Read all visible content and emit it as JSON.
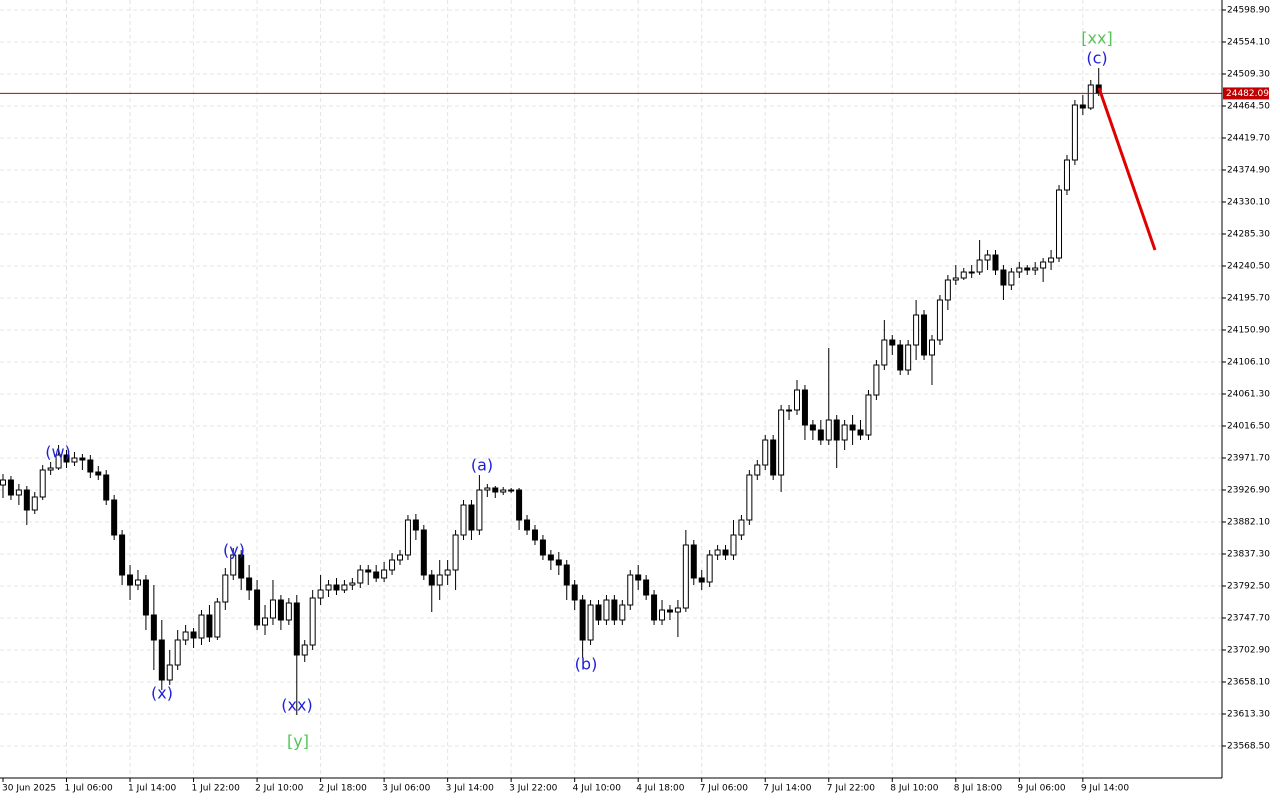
{
  "chart_data": {
    "type": "candlestick",
    "categories": [
      "30 Jun 2025",
      null,
      null,
      null,
      null,
      null,
      null,
      null,
      "1 Jul 06:00",
      null,
      null,
      null,
      null,
      null,
      null,
      null,
      "1 Jul 14:00",
      null,
      null,
      null,
      null,
      null,
      null,
      null,
      "1 Jul 22:00",
      null,
      null,
      null,
      null,
      null,
      null,
      null,
      "2 Jul 10:00",
      null,
      null,
      null,
      null,
      null,
      null,
      null,
      "2 Jul 18:00",
      null,
      null,
      null,
      null,
      null,
      null,
      null,
      "3 Jul 06:00",
      null,
      null,
      null,
      null,
      null,
      null,
      null,
      "3 Jul 14:00",
      null,
      null,
      null,
      null,
      null,
      null,
      null,
      "3 Jul 22:00",
      null,
      null,
      null,
      null,
      null,
      null,
      null,
      "4 Jul 10:00",
      null,
      null,
      null,
      null,
      null,
      null,
      null,
      "4 Jul 18:00",
      null,
      null,
      null,
      null,
      null,
      null,
      null,
      "7 Jul 06:00",
      null,
      null,
      null,
      null,
      null,
      null,
      null,
      "7 Jul 14:00",
      null,
      null,
      null,
      null,
      null,
      null,
      null,
      "7 Jul 22:00",
      null,
      null,
      null,
      null,
      null,
      null,
      null,
      "8 Jul 10:00",
      null,
      null,
      null,
      null,
      null,
      null,
      null,
      "8 Jul 18:00",
      null,
      null,
      null,
      null,
      null,
      null,
      null,
      "9 Jul 06:00",
      null,
      null,
      null,
      null,
      null,
      null,
      null,
      "9 Jul 14:00",
      null,
      null
    ],
    "open": [
      23933.9,
      23940.9,
      23919.9,
      23926.9,
      23898.9,
      23917.1,
      23954.9,
      23957.7,
      23975.9,
      23966.1,
      23971.7,
      23968.9,
      23952.1,
      23947.9,
      23912.9,
      23863.9,
      23807.9,
      23793.9,
      23800.9,
      23751.9,
      23716.9,
      23660.9,
      23681.9,
      23716.9,
      23728.1,
      23719.7,
      23751.9,
      23721.1,
      23770.1,
      23807.9,
      23835.9,
      23803.7,
      23786.9,
      23737.9,
      23747.7,
      23772.9,
      23744.9,
      23768.7,
      23695.9,
      23709.9,
      23775.7,
      23786.9,
      23793.9,
      23786.9,
      23793.9,
      23796.7,
      23814.9,
      23812.1,
      23803.7,
      23814.9,
      23828.9,
      23835.9,
      23884.9,
      23870.9,
      23807.9,
      23793.9,
      23807.9,
      23814.9,
      23863.9,
      23905.9,
      23870.9,
      23926.9,
      23929.7,
      23924.1,
      23926.9,
      23926.9,
      23884.9,
      23870.9,
      23856.9,
      23835.9,
      23828.9,
      23821.9,
      23793.9,
      23772.9,
      23716.9,
      23765.9,
      23744.9,
      23772.9,
      23744.9,
      23765.9,
      23807.9,
      23800.9,
      23779.9,
      23744.9,
      23758.9,
      23756.1,
      23761.7,
      23849.9,
      23803.7,
      23798.1,
      23835.9,
      23842.9,
      23835.9,
      23863.9,
      23884.9,
      23947.9,
      23961.9,
      23996.9,
      23947.9,
      24038.9,
      24038.9,
      24066.9,
      24017.9,
      24010.9,
      23996.9,
      24024.9,
      23996.9,
      24017.9,
      24010.9,
      24003.9,
      24059.9,
      24101.9,
      24136.9,
      24129.9,
      24094.9,
      24129.9,
      24171.9,
      24115.9,
      24136.9,
      24192.9,
      24220.9,
      24223.7,
      24232.1,
      24232.1,
      24248.9,
      24255.9,
      24234.9,
      24213.9,
      24232.1,
      24237.7,
      24234.9,
      24237.7,
      24246.1,
      24251.7,
      24346.9,
      24388.9,
      24465.9,
      24461.7,
      24493.9
    ],
    "high": [
      23949.3,
      23946.5,
      23935.3,
      23932.5,
      23924.1,
      23961.9,
      23966.1,
      23989.9,
      23982.9,
      23980.1,
      23977.3,
      23975.9,
      23960.5,
      23954.9,
      23919.9,
      23870.9,
      23821.9,
      23814.9,
      23807.9,
      23793.9,
      23744.9,
      23702.9,
      23730.9,
      23737.9,
      23733.7,
      23758.9,
      23765.9,
      23775.7,
      23817.7,
      23845.7,
      23842.9,
      23821.9,
      23800.9,
      23765.9,
      23800.9,
      23779.9,
      23775.7,
      23779.9,
      23716.9,
      23786.9,
      23807.9,
      23800.9,
      23803.7,
      23800.9,
      23803.7,
      23821.9,
      23821.9,
      23821.9,
      23826.1,
      23838.7,
      23842.9,
      23891.9,
      23893.3,
      23877.9,
      23814.9,
      23828.9,
      23828.9,
      23870.9,
      23912.9,
      23912.9,
      23947.9,
      23935.3,
      23932.5,
      23931.1,
      23929.7,
      23929.7,
      23891.9,
      23877.9,
      23863.9,
      23842.9,
      23840.1,
      23828.9,
      23800.9,
      23779.9,
      23772.9,
      23772.9,
      23779.9,
      23779.9,
      23772.9,
      23814.9,
      23821.9,
      23807.9,
      23786.9,
      23772.9,
      23765.9,
      23772.9,
      23870.9,
      23856.9,
      23814.9,
      23842.9,
      23849.9,
      23849.9,
      23884.9,
      23891.9,
      23954.9,
      23968.9,
      24003.9,
      24003.9,
      24045.9,
      24045.9,
      24080.9,
      24073.9,
      24024.9,
      24024.9,
      24125.7,
      24031.9,
      24024.9,
      24031.9,
      24024.9,
      24066.9,
      24108.9,
      24164.9,
      24143.9,
      24136.9,
      24136.9,
      24192.9,
      24178.9,
      24143.9,
      24199.9,
      24227.9,
      24241.9,
      24237.7,
      24241.9,
      24276.9,
      24262.9,
      24262.9,
      24241.9,
      24237.7,
      24246.1,
      24241.9,
      24246.1,
      24251.7,
      24262.9,
      24353.9,
      24395.9,
      24472.9,
      24479.9,
      24500.9,
      24517.7
    ],
    "low": [
      23915.7,
      23912.9,
      23905.9,
      23877.9,
      23893.3,
      23912.9,
      23947.9,
      23954.9,
      23957.7,
      23960.5,
      23954.9,
      23943.7,
      23940.9,
      23905.9,
      23856.9,
      23793.9,
      23772.9,
      23786.9,
      23730.9,
      23674.9,
      23646.9,
      23653.9,
      23674.9,
      23709.9,
      23705.7,
      23709.9,
      23714.1,
      23716.9,
      23758.9,
      23800.9,
      23786.9,
      23772.9,
      23730.9,
      23723.9,
      23737.9,
      23730.9,
      23737.9,
      23611.9,
      23686.1,
      23702.9,
      23765.9,
      23777.1,
      23779.9,
      23782.7,
      23786.9,
      23789.7,
      23793.9,
      23798.1,
      23798.1,
      23807.9,
      23821.9,
      23828.9,
      23856.9,
      23800.9,
      23756.1,
      23772.9,
      23793.9,
      23786.9,
      23856.9,
      23856.9,
      23863.9,
      23917.1,
      23915.7,
      23919.9,
      23922.7,
      23870.9,
      23863.9,
      23849.9,
      23828.9,
      23814.9,
      23807.9,
      23772.9,
      23758.9,
      23691.7,
      23709.9,
      23737.9,
      23737.9,
      23737.9,
      23737.9,
      23758.9,
      23786.9,
      23772.9,
      23737.9,
      23737.9,
      23744.9,
      23721.1,
      23756.1,
      23793.9,
      23786.9,
      23791.1,
      23828.9,
      23828.9,
      23828.9,
      23856.9,
      23877.9,
      23940.9,
      23954.9,
      23940.9,
      23924.1,
      24024.9,
      24031.9,
      23996.9,
      23996.9,
      23989.9,
      23989.9,
      23957.7,
      23982.9,
      23989.9,
      23996.9,
      23996.9,
      24052.9,
      24094.9,
      24115.9,
      24087.9,
      24087.9,
      24108.9,
      24108.9,
      24073.9,
      24129.9,
      24178.9,
      24213.9,
      24220.9,
      24223.7,
      24227.9,
      24234.9,
      24227.9,
      24192.9,
      24206.9,
      24223.7,
      24227.9,
      24227.9,
      24218.1,
      24234.9,
      24246.1,
      24339.9,
      24381.9,
      24451.9,
      24458.9,
      24478.5
    ],
    "close": [
      23940.9,
      23919.9,
      23926.9,
      23898.9,
      23917.1,
      23954.9,
      23957.7,
      23975.9,
      23966.1,
      23971.7,
      23968.9,
      23952.1,
      23947.9,
      23912.9,
      23863.9,
      23807.9,
      23793.9,
      23800.9,
      23751.9,
      23716.9,
      23660.9,
      23681.9,
      23716.9,
      23728.1,
      23719.7,
      23751.9,
      23721.1,
      23770.1,
      23807.9,
      23835.9,
      23803.7,
      23786.9,
      23737.9,
      23747.7,
      23772.9,
      23744.9,
      23768.7,
      23695.9,
      23709.9,
      23775.7,
      23786.9,
      23793.9,
      23786.9,
      23793.9,
      23796.7,
      23814.9,
      23812.1,
      23803.7,
      23814.9,
      23828.9,
      23835.9,
      23884.9,
      23870.9,
      23807.9,
      23793.9,
      23807.9,
      23814.9,
      23863.9,
      23905.9,
      23870.9,
      23926.9,
      23929.7,
      23924.1,
      23926.9,
      23926.9,
      23884.9,
      23870.9,
      23856.9,
      23835.9,
      23828.9,
      23821.9,
      23793.9,
      23772.9,
      23716.9,
      23765.9,
      23744.9,
      23772.9,
      23744.9,
      23765.9,
      23807.9,
      23800.9,
      23779.9,
      23744.9,
      23758.9,
      23756.1,
      23761.7,
      23849.9,
      23803.7,
      23798.1,
      23835.9,
      23842.9,
      23835.9,
      23863.9,
      23884.9,
      23947.9,
      23961.9,
      23996.9,
      23947.9,
      24038.9,
      24038.9,
      24066.9,
      24017.9,
      24010.9,
      23996.9,
      24024.9,
      23996.9,
      24017.9,
      24010.9,
      24003.9,
      24059.9,
      24101.9,
      24136.9,
      24129.9,
      24094.9,
      24129.9,
      24171.9,
      24115.9,
      24136.9,
      24192.9,
      24220.9,
      24223.7,
      24232.1,
      24232.1,
      24248.9,
      24255.9,
      24234.9,
      24213.9,
      24232.1,
      24237.7,
      24234.9,
      24237.7,
      24246.1,
      24251.7,
      24346.9,
      24388.9,
      24465.9,
      24461.7,
      24493.9,
      24482.09
    ],
    "up_color": "#ffffff",
    "down_color": "#000000",
    "ylim": [
      23523.7,
      24612.9
    ],
    "yticks": [
      {
        "value": 24598.9,
        "label": "24598.90"
      },
      {
        "value": 24554.1,
        "label": "24554.10"
      },
      {
        "value": 24509.3,
        "label": "24509.30"
      },
      {
        "value": 24464.5,
        "label": "24464.50"
      },
      {
        "value": 24419.7,
        "label": "24419.70"
      },
      {
        "value": 24374.9,
        "label": "24374.90"
      },
      {
        "value": 24330.1,
        "label": "24330.10"
      },
      {
        "value": 24285.3,
        "label": "24285.30"
      },
      {
        "value": 24240.5,
        "label": "24240.50"
      },
      {
        "value": 24195.7,
        "label": "24195.70"
      },
      {
        "value": 24150.9,
        "label": "24150.90"
      },
      {
        "value": 24106.1,
        "label": "24106.10"
      },
      {
        "value": 24061.3,
        "label": "24061.30"
      },
      {
        "value": 24016.5,
        "label": "24016.50"
      },
      {
        "value": 23971.7,
        "label": "23971.70"
      },
      {
        "value": 23926.9,
        "label": "23926.90"
      },
      {
        "value": 23882.1,
        "label": "23882.10"
      },
      {
        "value": 23837.3,
        "label": "23837.30"
      },
      {
        "value": 23792.5,
        "label": "23792.50"
      },
      {
        "value": 23747.7,
        "label": "23747.70"
      },
      {
        "value": 23702.9,
        "label": "23702.90"
      },
      {
        "value": 23658.1,
        "label": "23658.10"
      },
      {
        "value": 23613.3,
        "label": "23613.30"
      },
      {
        "value": 23568.5,
        "label": "23568.50"
      }
    ],
    "grid": true,
    "last_price": 24482.09,
    "last_price_color": "#c00000",
    "annotations": [
      {
        "text": "(w)",
        "color": "#1f1fd8"
      },
      {
        "text": "(x)",
        "color": "#1f1fd8"
      },
      {
        "text": "(y)",
        "color": "#1f1fd8"
      },
      {
        "text": "(xx)",
        "color": "#1f1fd8"
      },
      {
        "text": "[y]",
        "color": "#55c455"
      },
      {
        "text": "(a)",
        "color": "#1f1fd8"
      },
      {
        "text": "(b)",
        "color": "#1f1fd8"
      },
      {
        "text": "[xx]",
        "color": "#55c455"
      },
      {
        "text": "(c)",
        "color": "#1f1fd8"
      }
    ]
  }
}
